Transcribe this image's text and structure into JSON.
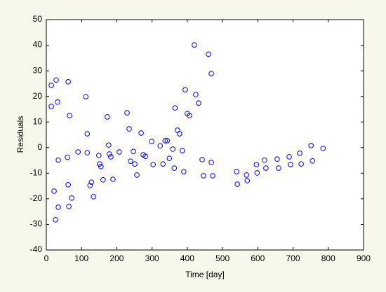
{
  "chart_data": {
    "type": "scatter",
    "xlabel": "Time [day]",
    "ylabel": "Residuals",
    "color": "#0000ff",
    "x": [
      14,
      14,
      28,
      32,
      34,
      22,
      26,
      34,
      62,
      66,
      60,
      62,
      64,
      72,
      90,
      112,
      116,
      116,
      124,
      128,
      134,
      149,
      151,
      155,
      161,
      173,
      177,
      179,
      183,
      189,
      207,
      229,
      235,
      239,
      247,
      251,
      257,
      269,
      275,
      281,
      299,
      303,
      323,
      331,
      337,
      343,
      349,
      359,
      363,
      365,
      372,
      378,
      386,
      390,
      394,
      400,
      406,
      420,
      424,
      432,
      442,
      446,
      460,
      468,
      468,
      472,
      540,
      542,
      568,
      570,
      596,
      598,
      619,
      623,
      655,
      659,
      689,
      693,
      719,
      723,
      751,
      755,
      785
    ],
    "values": [
      24.3,
      16.1,
      26.4,
      17.8,
      -4.9,
      -17,
      -28.2,
      -23.3,
      25.7,
      12.5,
      -3.8,
      -14.5,
      -23,
      -19.7,
      -1.7,
      19.9,
      5.4,
      -2,
      -14.8,
      -13.5,
      -19.2,
      -3.1,
      -6.4,
      -7.4,
      -12.6,
      12,
      1,
      -2.5,
      -3.6,
      -12.4,
      -1.7,
      13.6,
      7.3,
      -5.3,
      -1.5,
      -6.4,
      -10.7,
      5.7,
      -2.8,
      -3.4,
      2.4,
      -6.6,
      0.7,
      -6.4,
      2.7,
      2.7,
      -4.2,
      -0.6,
      -8,
      15.5,
      6.8,
      5.4,
      -1.2,
      -9.4,
      22.6,
      13.3,
      12.5,
      40.1,
      20.7,
      17.4,
      -4.7,
      -11,
      36.5,
      28.9,
      -5.8,
      -11,
      -9.4,
      -14.3,
      -10.7,
      -12.9,
      -6.6,
      -9.9,
      -4.9,
      -8,
      -4.5,
      -8,
      -3.6,
      -6.6,
      -2.2,
      -6.4,
      0.8,
      -5.2,
      -0.3
    ],
    "xlim": [
      0,
      900
    ],
    "xticks": [
      0,
      100,
      200,
      300,
      400,
      500,
      600,
      700,
      800,
      900
    ],
    "ylim": [
      -40,
      50
    ],
    "yticks": [
      -40,
      -30,
      -20,
      -10,
      0,
      10,
      20,
      30,
      40,
      50
    ],
    "grid": false
  }
}
